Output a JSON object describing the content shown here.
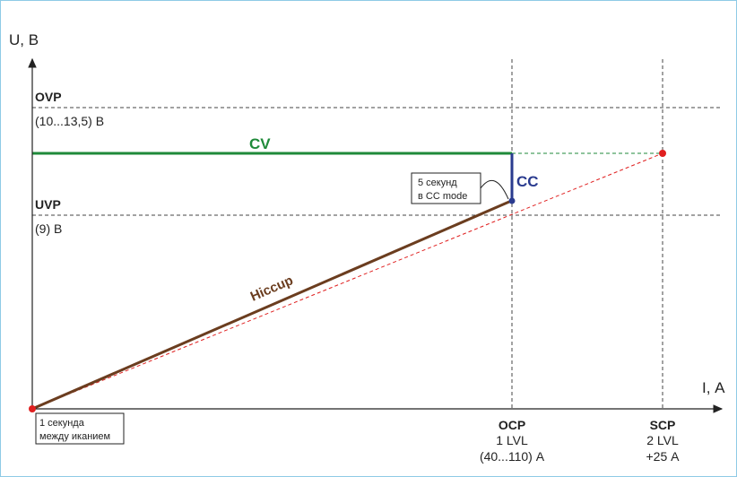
{
  "axes": {
    "y_label": "U, В",
    "x_label": "I, А"
  },
  "levels": {
    "ovp": {
      "name": "OVP",
      "range": "(10...13,5) В"
    },
    "uvp": {
      "name": "UVP",
      "range": "(9) В"
    }
  },
  "x_markers": {
    "ocp": {
      "name": "OCP",
      "level": "1 LVL",
      "range": "(40...110) А"
    },
    "scp": {
      "name": "SCP",
      "level": "2 LVL",
      "range": "+25 А"
    }
  },
  "modes": {
    "cv": "CV",
    "cc": "CC",
    "hiccup": "Hiccup"
  },
  "notes": {
    "cc_mode_line1": "5 секунд",
    "cc_mode_line2": "в CC mode",
    "hiccup_line1": "1 секунда",
    "hiccup_line2": "между иканием"
  },
  "colors": {
    "cv": "#1f8a3a",
    "cc": "#2a3b8f",
    "hiccup": "#6b3d1f",
    "load_line": "#e02020",
    "dashed_grid": "#444444"
  }
}
